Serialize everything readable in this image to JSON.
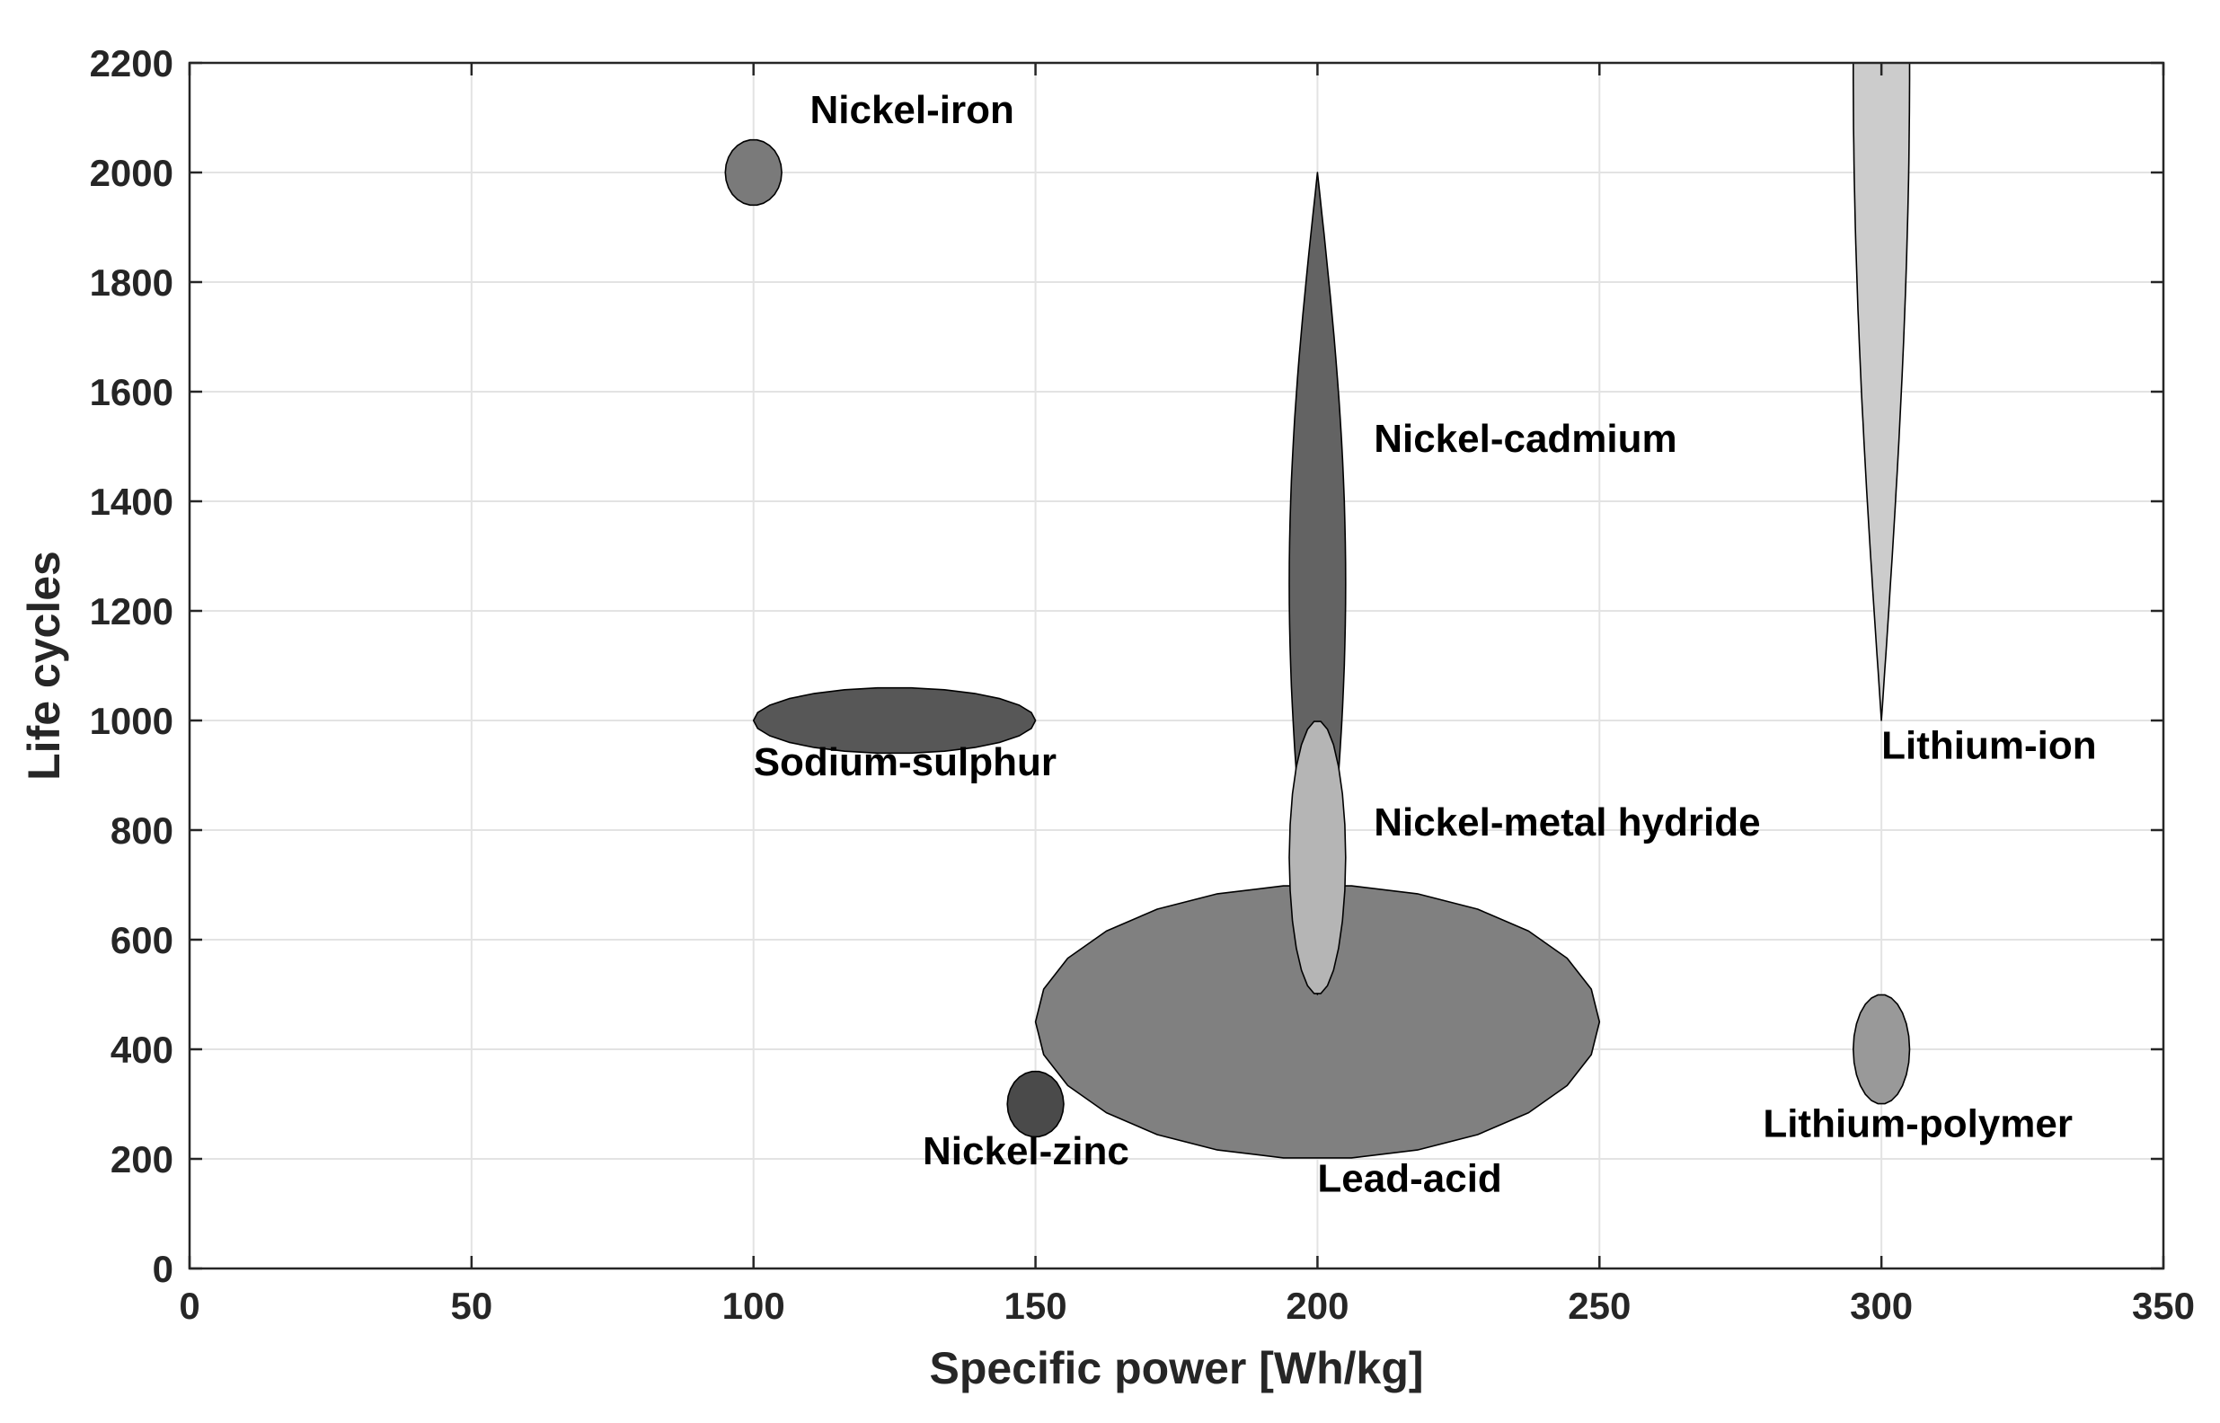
{
  "chart_data": {
    "type": "scatter",
    "title": "",
    "xlabel": "Specific power [Wh/kg]",
    "ylabel": "Life cycles",
    "xlim": [
      0,
      350
    ],
    "ylim": [
      0,
      2200
    ],
    "xticks": [
      0,
      50,
      100,
      150,
      200,
      250,
      300,
      350
    ],
    "yticks": [
      0,
      200,
      400,
      600,
      800,
      1000,
      1200,
      1400,
      1600,
      1800,
      2000,
      2200
    ],
    "grid": true,
    "series": [
      {
        "name": "Lead-acid",
        "shape": "ellipse",
        "x_range": [
          150,
          250
        ],
        "y_range": [
          200,
          700
        ],
        "color": "#808080",
        "label_anchor": {
          "x": 200,
          "y": 140,
          "align": "start"
        }
      },
      {
        "name": "Nickel-cadmium",
        "shape": "spindle",
        "x_range": [
          195,
          205
        ],
        "y_range": [
          500,
          2000
        ],
        "color": "#636363",
        "label_anchor": {
          "x": 210,
          "y": 1490,
          "align": "start"
        }
      },
      {
        "name": "Nickel-metal hydride",
        "shape": "ellipse",
        "x_range": [
          195,
          205
        ],
        "y_range": [
          500,
          1000
        ],
        "color": "#b5b5b5",
        "label_anchor": {
          "x": 210,
          "y": 790,
          "align": "start"
        }
      },
      {
        "name": "Nickel-iron",
        "shape": "ellipse",
        "x_range": [
          95,
          105
        ],
        "y_range": [
          1940,
          2060
        ],
        "color": "#7a7a7a",
        "label_anchor": {
          "x": 110,
          "y": 2090,
          "align": "start"
        }
      },
      {
        "name": "Sodium-sulphur",
        "shape": "ellipse",
        "x_range": [
          100,
          150
        ],
        "y_range": [
          940,
          1060
        ],
        "color": "#575757",
        "label_anchor": {
          "x": 100,
          "y": 900,
          "align": "start"
        }
      },
      {
        "name": "Nickel-zinc",
        "shape": "ellipse",
        "x_range": [
          145,
          155
        ],
        "y_range": [
          240,
          360
        ],
        "color": "#4a4a4a",
        "label_anchor": {
          "x": 130,
          "y": 190,
          "align": "start"
        }
      },
      {
        "name": "Lithium-ion",
        "shape": "tapered",
        "x_range": [
          295,
          305
        ],
        "y_range": [
          1000,
          2200
        ],
        "color": "#cccccc",
        "label_anchor": {
          "x": 300,
          "y": 930,
          "align": "start"
        }
      },
      {
        "name": "Lithium-polymer",
        "shape": "ellipse",
        "x_range": [
          295,
          305
        ],
        "y_range": [
          300,
          500
        ],
        "color": "#999999",
        "label_anchor": {
          "x": 279,
          "y": 240,
          "align": "start"
        }
      }
    ]
  }
}
